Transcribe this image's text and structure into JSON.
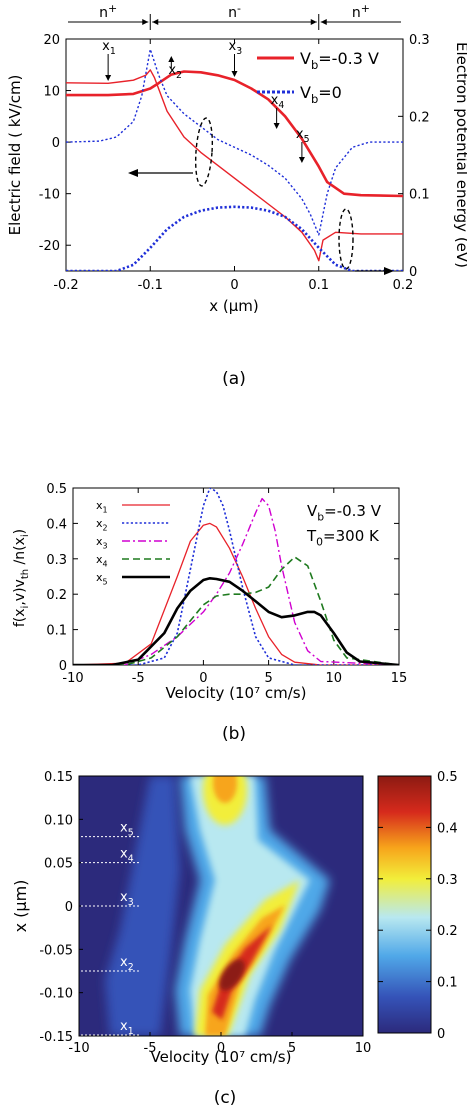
{
  "chart_data": [
    {
      "type": "line",
      "panel_label": "(a)",
      "xlabel": "x (μm)",
      "ylabel_left": "Electric field ( kV/cm)",
      "ylabel_right": "Electron potential energy (eV)",
      "xlim": [
        -0.2,
        0.2
      ],
      "ylim_left": [
        -25,
        20
      ],
      "ylim_right": [
        0,
        0.3
      ],
      "xticks": [
        "-0.2",
        "-0.1",
        "0",
        "0.1",
        "0.2"
      ],
      "yticks_left": [
        "20",
        "10",
        "0",
        "-10",
        "-20"
      ],
      "yticks_right": [
        "0.3",
        "0.2",
        "0.1",
        "0"
      ],
      "regions": [
        "n+",
        "n-",
        "n+"
      ],
      "region_bounds": [
        -0.1,
        0.1
      ],
      "point_labels": [
        {
          "label": "x1",
          "x": -0.15
        },
        {
          "label": "x2",
          "x": -0.075
        },
        {
          "label": "x3",
          "x": 0.0
        },
        {
          "label": "x4",
          "x": 0.05
        },
        {
          "label": "x5",
          "x": 0.08
        }
      ],
      "legend": [
        {
          "name": "Vb=-0.3 V",
          "color": "#e8222a",
          "style": "solid"
        },
        {
          "name": "Vb=0",
          "color": "#1f2fd8",
          "style": "dotted"
        }
      ],
      "legend_position": "top-right",
      "series": [
        {
          "name": "Vb=-0.3 V",
          "quantity": "field",
          "axis": "left",
          "color": "#e8222a",
          "style": "solid",
          "width": 1.4,
          "x": [
            -0.2,
            -0.15,
            -0.12,
            -0.105,
            -0.1,
            -0.095,
            -0.08,
            -0.06,
            -0.04,
            -0.02,
            0,
            0.02,
            0.04,
            0.06,
            0.08,
            0.095,
            0.1,
            0.105,
            0.12,
            0.15,
            0.2
          ],
          "y": [
            11.5,
            11.4,
            12,
            13,
            14,
            12.5,
            6,
            1,
            -2,
            -4.5,
            -7,
            -9.5,
            -12,
            -14.5,
            -17.5,
            -21,
            -23,
            -19,
            -17.5,
            -17.8,
            -17.8
          ]
        },
        {
          "name": "Vb=-0.3 V",
          "quantity": "potential",
          "axis": "right",
          "color": "#e8222a",
          "style": "solid",
          "width": 2.6,
          "x": [
            -0.2,
            -0.15,
            -0.12,
            -0.1,
            -0.09,
            -0.075,
            -0.06,
            -0.04,
            -0.02,
            0,
            0.02,
            0.04,
            0.06,
            0.08,
            0.1,
            0.11,
            0.13,
            0.15,
            0.2
          ],
          "y": [
            0.2275,
            0.2275,
            0.229,
            0.236,
            0.243,
            0.254,
            0.258,
            0.257,
            0.253,
            0.247,
            0.236,
            0.222,
            0.2,
            0.171,
            0.135,
            0.115,
            0.1,
            0.098,
            0.097
          ]
        },
        {
          "name": "Vb=0",
          "quantity": "field",
          "axis": "left",
          "color": "#1f2fd8",
          "style": "dotted",
          "width": 1.4,
          "x": [
            -0.2,
            -0.16,
            -0.14,
            -0.12,
            -0.11,
            -0.1,
            -0.09,
            -0.08,
            -0.06,
            -0.04,
            -0.02,
            0,
            0.02,
            0.04,
            0.06,
            0.08,
            0.09,
            0.1,
            0.11,
            0.12,
            0.14,
            0.16,
            0.2
          ],
          "y": [
            0,
            0.2,
            1,
            4,
            9,
            18,
            13,
            9,
            5.5,
            3,
            0.5,
            -1,
            -2.5,
            -4.5,
            -7,
            -11,
            -14,
            -18,
            -10,
            -5,
            -1,
            0,
            0
          ]
        },
        {
          "name": "Vb=0",
          "quantity": "potential",
          "axis": "right",
          "color": "#1f2fd8",
          "style": "dotted",
          "width": 2.6,
          "x": [
            -0.2,
            -0.14,
            -0.12,
            -0.1,
            -0.08,
            -0.06,
            -0.04,
            -0.02,
            0,
            0.02,
            0.04,
            0.06,
            0.08,
            0.1,
            0.12,
            0.14,
            0.2
          ],
          "y": [
            0,
            0,
            0.008,
            0.03,
            0.054,
            0.07,
            0.078,
            0.082,
            0.083,
            0.082,
            0.078,
            0.07,
            0.054,
            0.03,
            0.008,
            0,
            0
          ]
        }
      ]
    },
    {
      "type": "line",
      "panel_label": "(b)",
      "xlabel": "Velocity (10⁷ cm/s)",
      "ylabel": "f(xi,v)vth /n(xi)",
      "xlim": [
        -10,
        15
      ],
      "ylim": [
        0,
        0.5
      ],
      "xticks": [
        "-10",
        "-5",
        "0",
        "5",
        "10",
        "15"
      ],
      "yticks": [
        "0",
        "0.1",
        "0.2",
        "0.3",
        "0.4",
        "0.5"
      ],
      "annotation": [
        "Vb=-0.3 V",
        "T0=300 K"
      ],
      "legend_position": "top-left",
      "series": [
        {
          "name": "x1",
          "color": "#e8222a",
          "style": "solid",
          "width": 1.3,
          "x": [
            -10,
            -6,
            -4,
            -2,
            -1,
            0,
            0.5,
            1,
            2,
            3,
            4,
            5,
            6,
            7,
            9,
            15
          ],
          "y": [
            0,
            0.005,
            0.06,
            0.25,
            0.35,
            0.395,
            0.4,
            0.39,
            0.33,
            0.25,
            0.16,
            0.08,
            0.03,
            0.008,
            0,
            0
          ]
        },
        {
          "name": "x2",
          "color": "#1f2fd8",
          "style": "dotted",
          "width": 1.6,
          "x": [
            -10,
            -5,
            -3,
            -2,
            -1,
            0,
            0.5,
            1,
            1.5,
            2,
            3,
            4,
            5,
            7,
            15
          ],
          "y": [
            0,
            0,
            0.02,
            0.09,
            0.27,
            0.45,
            0.5,
            0.49,
            0.45,
            0.38,
            0.22,
            0.08,
            0.02,
            0,
            0
          ]
        },
        {
          "name": "x3",
          "color": "#d000d0",
          "style": "dashdot",
          "width": 1.4,
          "x": [
            -10,
            -6,
            -4,
            -2,
            0,
            1,
            2,
            3,
            4,
            4.5,
            5,
            5.5,
            6,
            7,
            8,
            9,
            15
          ],
          "y": [
            0,
            0,
            0.03,
            0.08,
            0.15,
            0.2,
            0.26,
            0.34,
            0.43,
            0.47,
            0.45,
            0.38,
            0.28,
            0.12,
            0.04,
            0.01,
            0
          ]
        },
        {
          "name": "x4",
          "color": "#1f7a1f",
          "style": "dashed",
          "width": 1.6,
          "x": [
            -10,
            -6,
            -4,
            -2,
            0,
            1,
            2,
            3,
            4,
            5,
            6,
            7,
            8,
            9,
            10,
            11,
            15
          ],
          "y": [
            0,
            0,
            0.02,
            0.08,
            0.17,
            0.195,
            0.2,
            0.2,
            0.205,
            0.22,
            0.27,
            0.305,
            0.28,
            0.18,
            0.07,
            0.02,
            0
          ]
        },
        {
          "name": "x5",
          "color": "#000000",
          "style": "solid",
          "width": 2.6,
          "x": [
            -10,
            -7,
            -5,
            -3,
            -2,
            -1,
            0,
            0.5,
            1,
            2,
            3,
            4,
            5,
            6,
            7,
            8,
            8.5,
            9,
            10,
            11,
            12,
            15
          ],
          "y": [
            0,
            0,
            0.015,
            0.09,
            0.16,
            0.21,
            0.24,
            0.245,
            0.243,
            0.235,
            0.21,
            0.18,
            0.15,
            0.135,
            0.14,
            0.15,
            0.15,
            0.14,
            0.09,
            0.035,
            0.01,
            0
          ]
        }
      ]
    },
    {
      "type": "heatmap",
      "panel_label": "(c)",
      "xlabel": "Velocity (10⁷ cm/s)",
      "ylabel": "x (μm)",
      "xlim": [
        -10,
        10
      ],
      "ylim": [
        -0.15,
        0.15
      ],
      "xticks": [
        "-10",
        "-5",
        "0",
        "5",
        "10"
      ],
      "yticks": [
        "0.15",
        "0.10",
        "0.05",
        "0",
        "-0.05",
        "-0.10",
        "-0.15"
      ],
      "colorbar_ticks": [
        "0.5",
        "0.4",
        "0.3",
        "0.2",
        "0.1",
        "0"
      ],
      "colorbar_range": [
        0,
        0.5
      ],
      "colormap": [
        "#2c2a7c",
        "#3553b8",
        "#50a8e8",
        "#b8e8f0",
        "#f2ee3a",
        "#f7a51b",
        "#d62a1c",
        "#8c1a12"
      ],
      "row_labels": [
        {
          "label": "x5",
          "y": 0.08
        },
        {
          "label": "x4",
          "y": 0.05
        },
        {
          "label": "x3",
          "y": 0.0
        },
        {
          "label": "x2",
          "y": -0.075
        },
        {
          "label": "x1",
          "y": -0.15
        }
      ]
    }
  ]
}
